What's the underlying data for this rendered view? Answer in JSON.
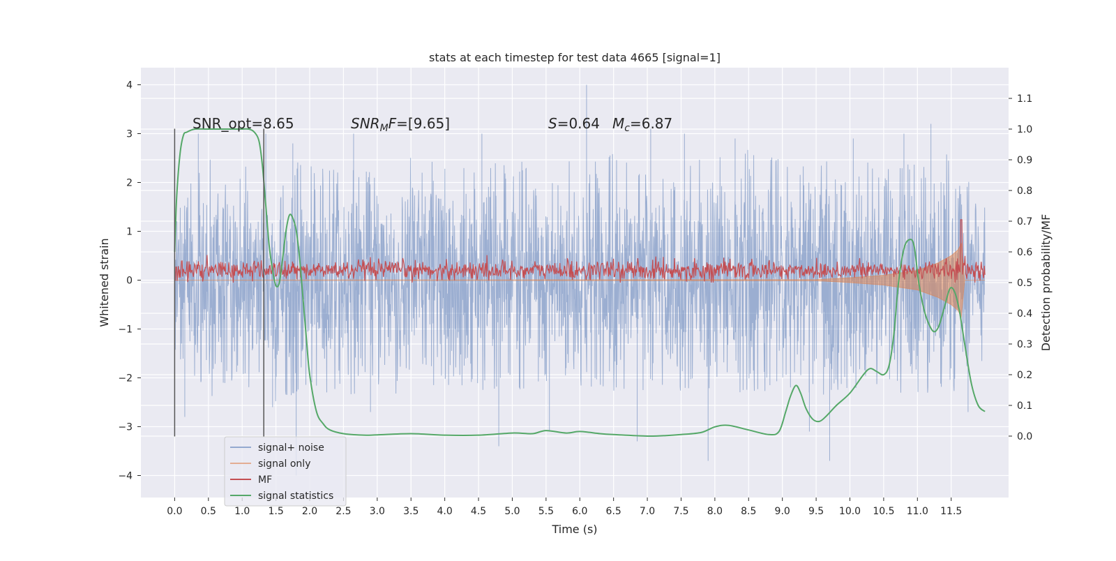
{
  "chart_data": {
    "type": "line",
    "title": "stats at each timestep for test data 4665 [signal=1]",
    "xlabel": "Time (s)",
    "ylabel_left": "Whitened strain",
    "ylabel_right": "Detection probability/MF",
    "xlim": [
      -0.5,
      12.35
    ],
    "ylim_left": [
      -4.45,
      4.35
    ],
    "ylim_right": [
      -0.2,
      1.2
    ],
    "x_ticks": [
      "0.0",
      "0.5",
      "1.0",
      "1.5",
      "2.0",
      "2.5",
      "3.0",
      "3.5",
      "4.0",
      "4.5",
      "5.0",
      "5.5",
      "6.0",
      "6.5",
      "7.0",
      "7.5",
      "8.0",
      "8.5",
      "9.0",
      "9.5",
      "10.0",
      "10.5",
      "11.0",
      "11.5"
    ],
    "y_ticks_left": [
      "4",
      "3",
      "2",
      "1",
      "0",
      "−1",
      "−2",
      "−3",
      "−4"
    ],
    "y_ticks_right": [
      "1.1",
      "1.0",
      "0.9",
      "0.8",
      "0.7",
      "0.6",
      "0.5",
      "0.4",
      "0.3",
      "0.2",
      "0.1",
      "0.0"
    ],
    "grid": true,
    "legend_position": "lower-left",
    "annotations": {
      "snr_opt": "SNR_opt=8.65",
      "snr_mf": "SNR_MF=[9.65]",
      "s_mc": "S=0.64   M_c=6.87"
    },
    "vertical_lines_x": [
      0.0,
      1.32
    ],
    "vertical_lines_y": [
      -3.2,
      3.1
    ],
    "series": [
      {
        "name": "signal+ noise",
        "color": "#4c72b0",
        "note_values": "dense whitened strain trace, x 0–12.0 s, envelope approx ±2.0 with excursions to ±3.5; peak 4.0 at 6.1 s",
        "envelope": [
          [
            0.0,
            1.6,
            -1.6
          ],
          [
            0.5,
            2.5,
            -2.5
          ],
          [
            1.0,
            2.4,
            -2.2
          ],
          [
            1.5,
            2.3,
            -2.5
          ],
          [
            2.0,
            2.5,
            -2.2
          ],
          [
            2.5,
            2.3,
            -2.4
          ],
          [
            3.0,
            2.2,
            -2.3
          ],
          [
            3.5,
            2.6,
            -2.4
          ],
          [
            4.0,
            2.5,
            -2.2
          ],
          [
            4.5,
            2.6,
            -2.3
          ],
          [
            5.0,
            2.4,
            -2.3
          ],
          [
            5.5,
            2.6,
            -2.2
          ],
          [
            6.0,
            2.5,
            -2.3
          ],
          [
            6.5,
            2.7,
            -2.3
          ],
          [
            7.0,
            2.3,
            -2.4
          ],
          [
            7.5,
            2.6,
            -2.3
          ],
          [
            8.0,
            2.5,
            -2.3
          ],
          [
            8.5,
            2.7,
            -2.4
          ],
          [
            9.0,
            2.5,
            -2.2
          ],
          [
            9.5,
            2.6,
            -2.4
          ],
          [
            10.0,
            2.5,
            -2.2
          ],
          [
            10.5,
            2.4,
            -2.3
          ],
          [
            11.0,
            2.6,
            -2.4
          ],
          [
            11.5,
            2.6,
            -2.4
          ],
          [
            12.0,
            1.5,
            -1.6
          ]
        ],
        "spikes": [
          [
            0.35,
            3.0
          ],
          [
            0.15,
            -2.8
          ],
          [
            1.35,
            3.0
          ],
          [
            1.45,
            -2.6
          ],
          [
            1.75,
            2.8
          ],
          [
            1.8,
            -4.0
          ],
          [
            2.65,
            3.0
          ],
          [
            2.9,
            -2.7
          ],
          [
            4.55,
            3.0
          ],
          [
            4.8,
            -3.4
          ],
          [
            5.55,
            -3.1
          ],
          [
            6.1,
            4.0
          ],
          [
            6.85,
            -3.3
          ],
          [
            7.05,
            3.1
          ],
          [
            7.55,
            3.0
          ],
          [
            7.9,
            -3.7
          ],
          [
            8.3,
            2.9
          ],
          [
            9.4,
            -3.1
          ],
          [
            9.7,
            -3.7
          ],
          [
            10.05,
            2.9
          ],
          [
            10.8,
            3.0
          ],
          [
            11.2,
            3.2
          ],
          [
            11.75,
            -2.7
          ]
        ]
      },
      {
        "name": "signal only",
        "color": "#dd8452",
        "note_values": "chirp: negligible amplitude until ~10 s, growing to ±0.75 at 11.65 s",
        "x": [
          0.0,
          9.5,
          10.0,
          10.5,
          11.0,
          11.3,
          11.5,
          11.6,
          11.65,
          11.7,
          12.0
        ],
        "upper": [
          0.0,
          0.01,
          0.05,
          0.1,
          0.2,
          0.35,
          0.5,
          0.62,
          0.75,
          0.0,
          0.0
        ],
        "lower": [
          0.0,
          -0.01,
          -0.05,
          -0.1,
          -0.2,
          -0.35,
          -0.5,
          -0.62,
          -0.75,
          0.0,
          0.0
        ]
      },
      {
        "name": "MF",
        "color": "#c44e52",
        "note_values": "matched filter output on right axis, noisy band 0.50–0.58 with a peak of 0.70 at 11.65 s",
        "base": 0.54,
        "amplitude": 0.035,
        "peak": [
          11.65,
          0.705
        ]
      },
      {
        "name": "signal statistics",
        "color": "#55a868",
        "note_values": "detection probability (right axis)",
        "x": [
          0.0,
          0.03,
          0.08,
          0.13,
          0.18,
          0.3,
          0.5,
          0.8,
          1.0,
          1.1,
          1.18,
          1.25,
          1.3,
          1.35,
          1.4,
          1.45,
          1.5,
          1.55,
          1.6,
          1.65,
          1.7,
          1.75,
          1.8,
          1.85,
          1.9,
          1.95,
          2.0,
          2.1,
          2.2,
          2.3,
          2.5,
          2.8,
          3.0,
          3.5,
          4.0,
          4.5,
          5.0,
          5.3,
          5.5,
          5.8,
          6.0,
          6.3,
          6.5,
          7.0,
          7.3,
          7.5,
          7.8,
          8.0,
          8.2,
          8.5,
          8.8,
          8.95,
          9.05,
          9.12,
          9.2,
          9.27,
          9.35,
          9.45,
          9.55,
          9.65,
          9.8,
          10.0,
          10.2,
          10.3,
          10.4,
          10.5,
          10.58,
          10.65,
          10.72,
          10.8,
          10.88,
          10.95,
          11.02,
          11.1,
          11.18,
          11.25,
          11.32,
          11.4,
          11.48,
          11.55,
          11.62,
          11.7,
          11.8,
          11.9,
          12.0
        ],
        "values": [
          0.6,
          0.78,
          0.92,
          0.98,
          0.99,
          1.0,
          1.0,
          1.0,
          1.0,
          1.0,
          0.99,
          0.96,
          0.88,
          0.75,
          0.62,
          0.54,
          0.49,
          0.5,
          0.58,
          0.67,
          0.72,
          0.71,
          0.67,
          0.58,
          0.45,
          0.32,
          0.2,
          0.08,
          0.04,
          0.02,
          0.008,
          0.003,
          0.004,
          0.008,
          0.003,
          0.003,
          0.01,
          0.008,
          0.018,
          0.01,
          0.015,
          0.008,
          0.005,
          0.0,
          0.002,
          0.005,
          0.012,
          0.03,
          0.035,
          0.02,
          0.005,
          0.015,
          0.08,
          0.13,
          0.165,
          0.14,
          0.09,
          0.055,
          0.048,
          0.065,
          0.1,
          0.14,
          0.2,
          0.22,
          0.21,
          0.2,
          0.23,
          0.33,
          0.5,
          0.61,
          0.64,
          0.62,
          0.5,
          0.41,
          0.36,
          0.34,
          0.36,
          0.42,
          0.48,
          0.47,
          0.41,
          0.3,
          0.17,
          0.1,
          0.08
        ]
      }
    ]
  }
}
